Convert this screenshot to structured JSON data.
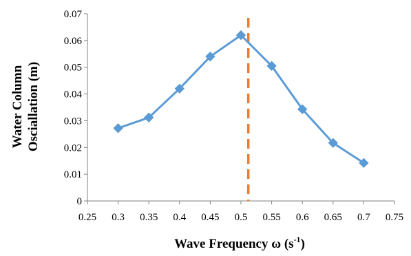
{
  "chart_data": {
    "type": "line",
    "title": "",
    "xlabel": "Wave Frequency ω (s",
    "xlabel_sup": "-1",
    "xlabel_suffix": ")",
    "ylabel_lines": [
      "Water Column",
      "Osciallation (m)"
    ],
    "xlim": [
      0.25,
      0.75
    ],
    "ylim": [
      0,
      0.07
    ],
    "x_ticks": [
      "0.25",
      "0.3",
      "0.35",
      "0.4",
      "0.45",
      "0.5",
      "0.55",
      "0.6",
      "0.65",
      "0.7",
      "0.75"
    ],
    "x_tick_values": [
      0.25,
      0.3,
      0.35,
      0.4,
      0.45,
      0.5,
      0.55,
      0.6,
      0.65,
      0.7,
      0.75
    ],
    "y_ticks": [
      "0",
      "0.01",
      "0.02",
      "0.03",
      "0.04",
      "0.05",
      "0.06",
      "0.07"
    ],
    "y_tick_values": [
      0,
      0.01,
      0.02,
      0.03,
      0.04,
      0.05,
      0.06,
      0.07
    ],
    "grid": false,
    "legend": "none",
    "series": [
      {
        "x": [
          0.3,
          0.35,
          0.4,
          0.45,
          0.5,
          0.55,
          0.6,
          0.65,
          0.7
        ],
        "y": [
          0.0272,
          0.0312,
          0.042,
          0.054,
          0.062,
          0.0505,
          0.0343,
          0.0217,
          0.0142
        ],
        "color": "#5b9bd5",
        "marker": "diamond"
      }
    ],
    "reference_line": {
      "x": 0.512,
      "color": "#ed7d31",
      "style": "dashed"
    }
  }
}
